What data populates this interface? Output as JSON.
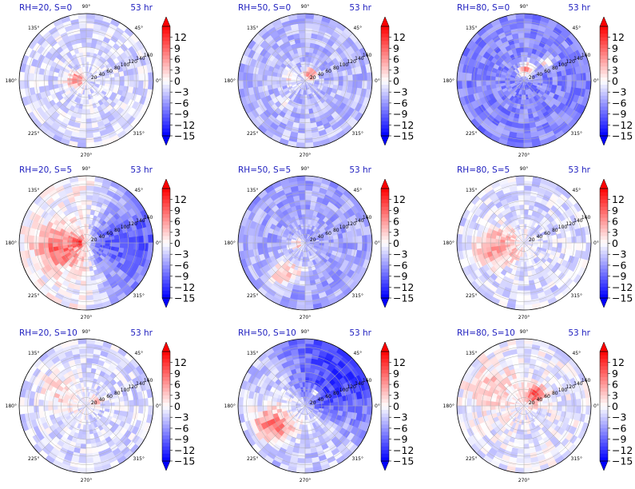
{
  "figure": {
    "colormap": {
      "name": "bwr",
      "low_color": "#0000ff",
      "mid_color": "#ffffff",
      "high_color": "#ff0000",
      "vmin": -15,
      "vmax": 15,
      "ticks": [
        12,
        9,
        6,
        3,
        0,
        -3,
        -6,
        -9,
        -12,
        -15
      ],
      "tick_labels": [
        "12",
        "9",
        "6",
        "3",
        "0",
        "−3",
        "−6",
        "−9",
        "−12",
        "−15"
      ],
      "extend": "both"
    },
    "theta_tick_labels": [
      "90°",
      "45°",
      "0°",
      "315°",
      "270°",
      "225°",
      "180°",
      "135°"
    ],
    "theta_tick_angles": [
      90,
      45,
      0,
      315,
      270,
      225,
      180,
      135
    ],
    "radial_ticks": [
      20,
      40,
      60,
      80,
      100,
      120,
      140,
      160
    ],
    "radial_tick_labels": [
      "20",
      "40",
      "60",
      "80",
      "100",
      "120",
      "140",
      "160"
    ],
    "radial_label_angle_deg": 22.5
  },
  "chart_data": [
    {
      "type": "heatmap",
      "projection": "polar",
      "title": "RH=20, S=0",
      "time_label": "53 hr",
      "rlim": [
        0,
        160
      ],
      "pattern": {
        "base": -2,
        "lobes": [
          {
            "a": 190,
            "r": 30,
            "w": 20,
            "v": 7
          },
          {
            "a": 160,
            "r": 20,
            "w": 15,
            "v": 5
          }
        ],
        "swirl": 3
      }
    },
    {
      "type": "heatmap",
      "projection": "polar",
      "title": "RH=50, S=0",
      "time_label": "53 hr",
      "rlim": [
        0,
        160
      ],
      "pattern": {
        "base": -4,
        "lobes": [
          {
            "a": 180,
            "r": 40,
            "w": 20,
            "v": 6
          },
          {
            "a": 60,
            "r": 20,
            "w": 15,
            "v": 12
          },
          {
            "a": 240,
            "r": 70,
            "w": 12,
            "v": 6
          }
        ],
        "swirl": 5
      }
    },
    {
      "type": "heatmap",
      "projection": "polar",
      "title": "RH=80, S=0",
      "time_label": "53 hr",
      "rlim": [
        0,
        160
      ],
      "pattern": {
        "base": -7,
        "lobes": [
          {
            "a": 90,
            "r": 30,
            "w": 18,
            "v": 14
          },
          {
            "a": 60,
            "r": 70,
            "w": 15,
            "v": 10
          }
        ],
        "swirl": 6
      }
    },
    {
      "type": "heatmap",
      "projection": "polar",
      "title": "RH=20, S=5",
      "time_label": "53 hr",
      "rlim": [
        0,
        160
      ],
      "pattern": {
        "base": 0,
        "half": {
          "dir": 0,
          "v": -9
        },
        "lobes": [
          {
            "a": 200,
            "r": 70,
            "w": 50,
            "v": 9
          },
          {
            "a": 180,
            "r": 20,
            "w": 12,
            "v": 12
          }
        ],
        "swirl": 2
      }
    },
    {
      "type": "heatmap",
      "projection": "polar",
      "title": "RH=50, S=5",
      "time_label": "53 hr",
      "rlim": [
        0,
        160
      ],
      "pattern": {
        "base": -5,
        "lobes": [
          {
            "a": 260,
            "r": 90,
            "w": 40,
            "v": 9
          },
          {
            "a": 200,
            "r": 20,
            "w": 15,
            "v": 8
          }
        ],
        "swirl": 5
      }
    },
    {
      "type": "heatmap",
      "projection": "polar",
      "title": "RH=80, S=5",
      "time_label": "53 hr",
      "rlim": [
        0,
        160
      ],
      "pattern": {
        "base": -2,
        "lobes": [
          {
            "a": 200,
            "r": 60,
            "w": 45,
            "v": 8
          },
          {
            "a": 220,
            "r": 110,
            "w": 30,
            "v": 5
          }
        ],
        "swirl": 4
      }
    },
    {
      "type": "heatmap",
      "projection": "polar",
      "title": "RH=20, S=10",
      "time_label": "53 hr",
      "rlim": [
        0,
        160
      ],
      "pattern": {
        "base": -2,
        "lobes": [
          {
            "a": 160,
            "r": 70,
            "w": 55,
            "v": 4
          },
          {
            "a": 30,
            "r": 30,
            "w": 12,
            "v": 5
          }
        ],
        "swirl": 2
      }
    },
    {
      "type": "heatmap",
      "projection": "polar",
      "title": "RH=50, S=10",
      "time_label": "53 hr",
      "rlim": [
        0,
        160
      ],
      "pattern": {
        "base": -3,
        "half": {
          "dir": 45,
          "v": -8
        },
        "lobes": [
          {
            "a": 225,
            "r": 90,
            "w": 45,
            "v": 11
          },
          {
            "a": 60,
            "r": 40,
            "w": 15,
            "v": 9
          }
        ],
        "swirl": 3
      }
    },
    {
      "type": "heatmap",
      "projection": "polar",
      "title": "RH=80, S=10",
      "time_label": "53 hr",
      "rlim": [
        0,
        160
      ],
      "pattern": {
        "base": -1,
        "lobes": [
          {
            "a": 160,
            "r": 90,
            "w": 60,
            "v": 4
          },
          {
            "a": 50,
            "r": 40,
            "w": 22,
            "v": 11
          }
        ],
        "swirl": 2
      }
    }
  ]
}
